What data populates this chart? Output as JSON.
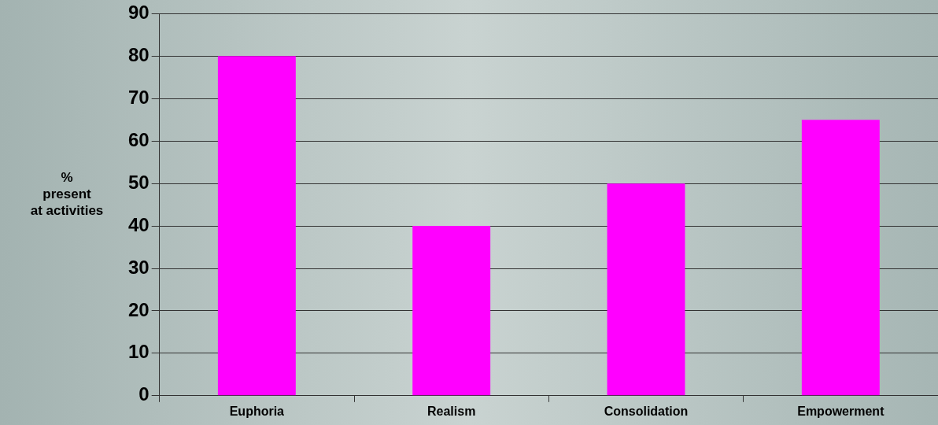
{
  "chart_data": {
    "type": "bar",
    "ylabel": "%\npresent\nat activities",
    "categories": [
      "Euphoria",
      "Realism",
      "Consolidation",
      "Empowerment"
    ],
    "values": [
      80,
      40,
      50,
      65
    ],
    "color": "#ff00ff",
    "ylim": [
      0,
      90
    ],
    "yticks": [
      0,
      10,
      20,
      30,
      40,
      50,
      60,
      70,
      80,
      90
    ],
    "grid": "y"
  }
}
